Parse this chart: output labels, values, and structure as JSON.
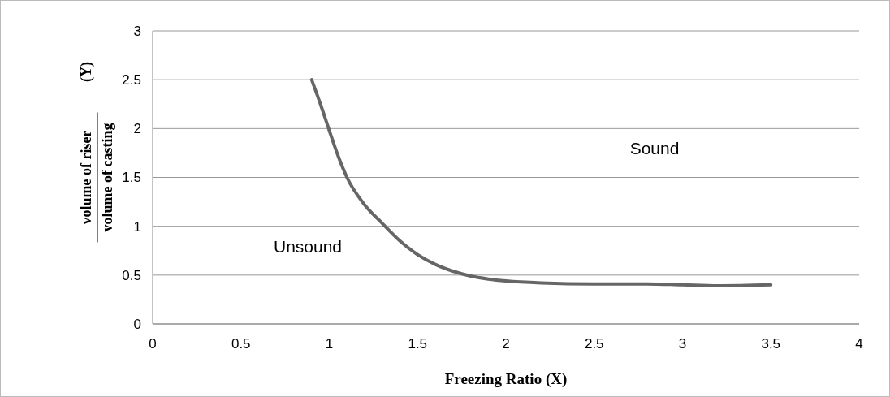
{
  "chart_data": {
    "type": "line",
    "xlabel": "Freezing Ratio (X)",
    "ylabel": "volume of riser volume of casting (Y)",
    "x": [
      0.9,
      0.95,
      1.0,
      1.05,
      1.1,
      1.2,
      1.3,
      1.4,
      1.5,
      1.6,
      1.7,
      1.8,
      1.9,
      2.0,
      2.2,
      2.5,
      2.8,
      3.0,
      3.2,
      3.5
    ],
    "series": [
      {
        "color": "#666666",
        "values": [
          2.5,
          2.25,
          1.98,
          1.72,
          1.5,
          1.22,
          1.03,
          0.85,
          0.71,
          0.61,
          0.54,
          0.49,
          0.46,
          0.44,
          0.42,
          0.41,
          0.41,
          0.4,
          0.39,
          0.4
        ]
      }
    ],
    "xlim": [
      0,
      4
    ],
    "xticks": [
      0,
      0.5,
      1,
      1.5,
      2,
      2.5,
      3,
      3.5,
      4
    ],
    "ylim": [
      0,
      3
    ],
    "yticks": [
      0,
      0.5,
      1,
      1.5,
      2,
      2.5,
      3
    ],
    "grid": "y",
    "marker": "none",
    "line_style": "solid",
    "annotations": [
      "Sound",
      "Unsound"
    ]
  }
}
